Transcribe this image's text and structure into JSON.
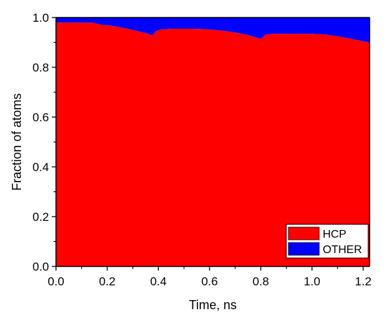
{
  "chart_data": {
    "type": "area",
    "stacked": true,
    "xlabel": "Time, ns",
    "ylabel": "Fraction of atoms",
    "xlim": [
      0.0,
      1.225
    ],
    "ylim": [
      0.0,
      1.0
    ],
    "xticks": [
      "0.0",
      "0.2",
      "0.4",
      "0.6",
      "0.8",
      "1.0",
      "1.2"
    ],
    "yticks": [
      "0.0",
      "0.2",
      "0.4",
      "0.6",
      "0.8",
      "1.0"
    ],
    "x": [
      0.0,
      0.02,
      0.05,
      0.1,
      0.14,
      0.17,
      0.18,
      0.2,
      0.24,
      0.28,
      0.32,
      0.36,
      0.375,
      0.39,
      0.41,
      0.45,
      0.5,
      0.55,
      0.6,
      0.65,
      0.7,
      0.75,
      0.78,
      0.8,
      0.82,
      0.85,
      0.9,
      0.95,
      1.0,
      1.05,
      1.1,
      1.15,
      1.2,
      1.225
    ],
    "series": [
      {
        "name": "HCP",
        "color": "#ff0000",
        "values": [
          0.98,
          0.98,
          0.98,
          0.98,
          0.98,
          0.973,
          0.97,
          0.97,
          0.963,
          0.955,
          0.945,
          0.935,
          0.928,
          0.945,
          0.952,
          0.955,
          0.955,
          0.955,
          0.952,
          0.947,
          0.94,
          0.93,
          0.92,
          0.915,
          0.932,
          0.935,
          0.935,
          0.935,
          0.935,
          0.932,
          0.925,
          0.915,
          0.905,
          0.9
        ]
      },
      {
        "name": "OTHER",
        "color": "#0000ff",
        "values": [
          0.02,
          0.02,
          0.02,
          0.02,
          0.02,
          0.027,
          0.03,
          0.03,
          0.037,
          0.045,
          0.055,
          0.065,
          0.072,
          0.055,
          0.048,
          0.045,
          0.045,
          0.045,
          0.048,
          0.053,
          0.06,
          0.07,
          0.08,
          0.085,
          0.068,
          0.065,
          0.065,
          0.065,
          0.065,
          0.068,
          0.075,
          0.085,
          0.095,
          0.1
        ]
      }
    ],
    "legend_position": "bottom-right",
    "grid": false
  }
}
